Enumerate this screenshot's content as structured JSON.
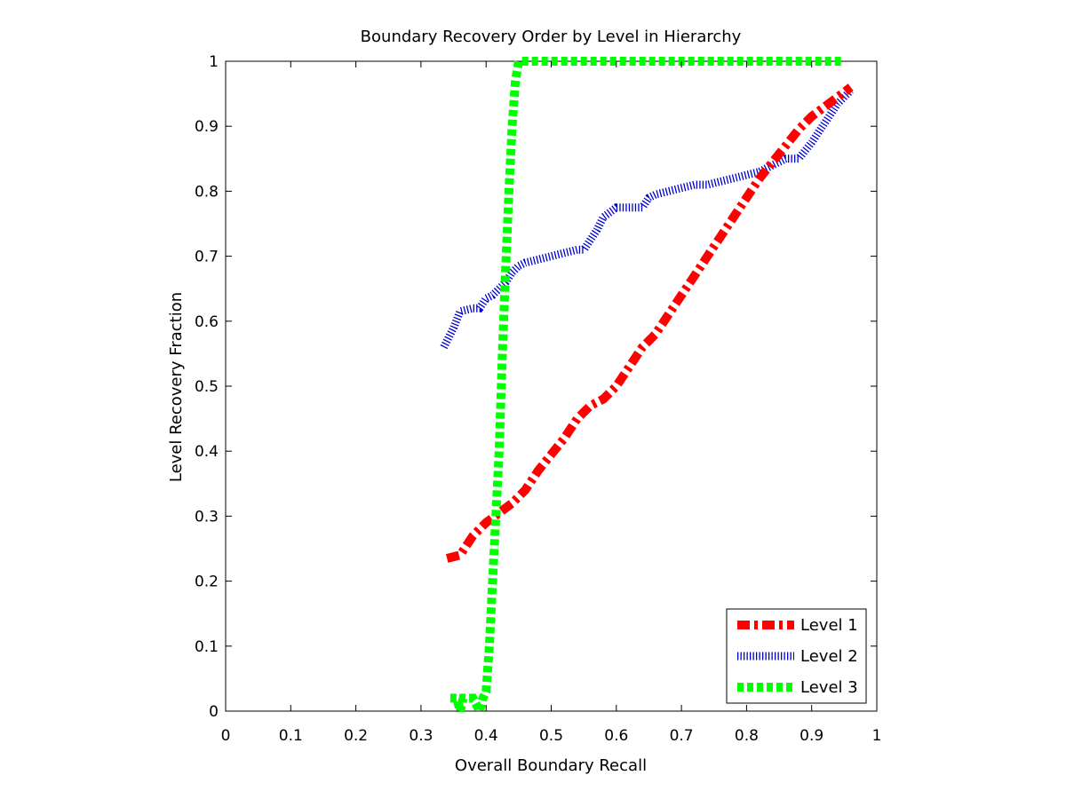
{
  "chart_data": {
    "type": "line",
    "title": "Boundary Recovery Order by Level in Hierarchy",
    "xlabel": "Overall Boundary Recall",
    "ylabel": "Level Recovery Fraction",
    "xlim": [
      0,
      1
    ],
    "ylim": [
      0,
      1
    ],
    "xticks": [
      "0",
      "0.1",
      "0.2",
      "0.3",
      "0.4",
      "0.5",
      "0.6",
      "0.7",
      "0.8",
      "0.9",
      "1"
    ],
    "yticks": [
      "0",
      "0.1",
      "0.2",
      "0.3",
      "0.4",
      "0.5",
      "0.6",
      "0.7",
      "0.8",
      "0.9",
      "1"
    ],
    "grid": false,
    "legend_position": "bottom-right",
    "series": [
      {
        "name": "Level 1",
        "color": "#ff0000",
        "style": "dash-dot",
        "x": [
          0.34,
          0.36,
          0.38,
          0.4,
          0.42,
          0.44,
          0.46,
          0.48,
          0.5,
          0.52,
          0.54,
          0.56,
          0.58,
          0.6,
          0.62,
          0.64,
          0.66,
          0.68,
          0.7,
          0.72,
          0.74,
          0.76,
          0.78,
          0.8,
          0.82,
          0.84,
          0.86,
          0.88,
          0.9,
          0.92,
          0.94,
          0.96
        ],
        "y": [
          0.235,
          0.24,
          0.27,
          0.29,
          0.305,
          0.32,
          0.34,
          0.37,
          0.395,
          0.42,
          0.45,
          0.47,
          0.48,
          0.5,
          0.53,
          0.56,
          0.58,
          0.61,
          0.64,
          0.67,
          0.7,
          0.73,
          0.76,
          0.79,
          0.82,
          0.845,
          0.87,
          0.895,
          0.915,
          0.93,
          0.945,
          0.96
        ]
      },
      {
        "name": "Level 2",
        "color": "#0000cc",
        "style": "dotted",
        "x": [
          0.335,
          0.35,
          0.36,
          0.38,
          0.39,
          0.4,
          0.41,
          0.42,
          0.43,
          0.44,
          0.45,
          0.46,
          0.48,
          0.5,
          0.52,
          0.54,
          0.55,
          0.57,
          0.58,
          0.6,
          0.62,
          0.64,
          0.65,
          0.66,
          0.68,
          0.7,
          0.72,
          0.74,
          0.76,
          0.78,
          0.8,
          0.82,
          0.84,
          0.86,
          0.88,
          0.9,
          0.92,
          0.94,
          0.96
        ],
        "y": [
          0.56,
          0.59,
          0.615,
          0.62,
          0.62,
          0.635,
          0.64,
          0.65,
          0.66,
          0.675,
          0.685,
          0.69,
          0.695,
          0.7,
          0.705,
          0.71,
          0.71,
          0.74,
          0.76,
          0.775,
          0.775,
          0.775,
          0.79,
          0.795,
          0.8,
          0.805,
          0.81,
          0.81,
          0.815,
          0.82,
          0.825,
          0.83,
          0.84,
          0.85,
          0.85,
          0.875,
          0.905,
          0.935,
          0.955
        ]
      },
      {
        "name": "Level 3",
        "color": "#00ff00",
        "style": "dashed",
        "x": [
          0.345,
          0.355,
          0.36,
          0.365,
          0.37,
          0.38,
          0.39,
          0.395,
          0.4,
          0.405,
          0.41,
          0.415,
          0.42,
          0.425,
          0.43,
          0.435,
          0.44,
          0.445,
          0.45,
          0.47,
          0.5,
          0.55,
          0.6,
          0.65,
          0.7,
          0.75,
          0.8,
          0.85,
          0.9,
          0.95
        ],
        "y": [
          0.02,
          0.02,
          0.0,
          0.02,
          0.02,
          0.02,
          0.0,
          0.02,
          0.03,
          0.1,
          0.2,
          0.3,
          0.4,
          0.55,
          0.68,
          0.8,
          0.9,
          0.97,
          1.0,
          1.0,
          1.0,
          1.0,
          1.0,
          1.0,
          1.0,
          1.0,
          1.0,
          1.0,
          1.0,
          1.0
        ]
      }
    ]
  }
}
